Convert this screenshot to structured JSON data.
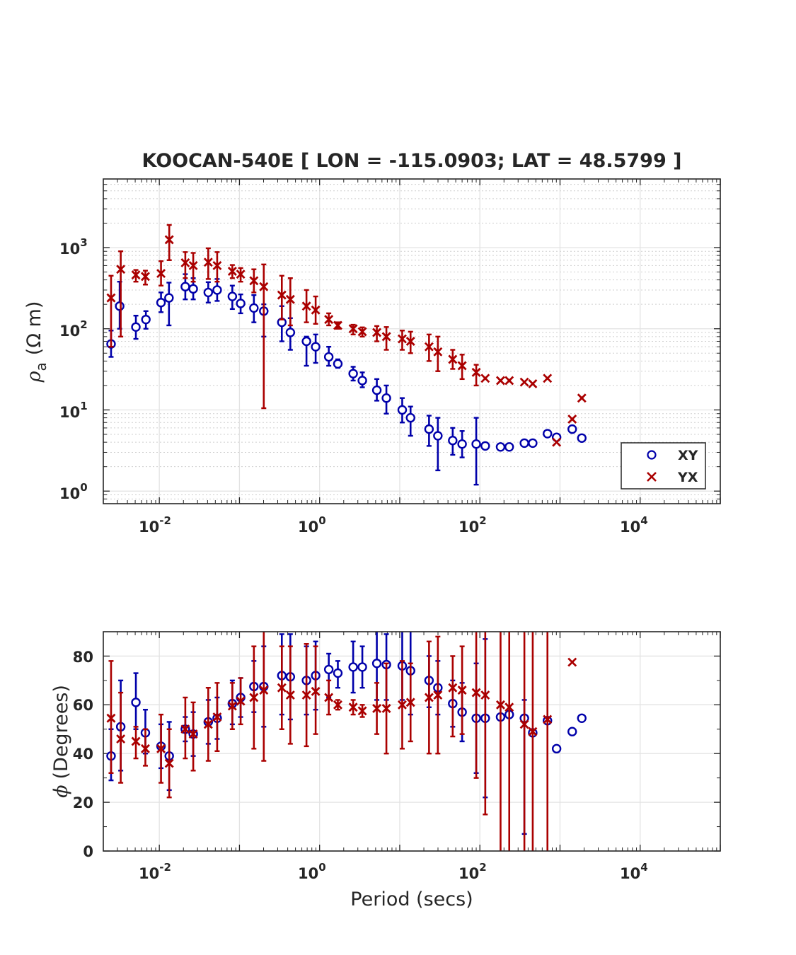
{
  "title": "KOOCAN-540E [ LON = -115.0903; LAT = 48.5799 ]",
  "colors": {
    "xy": "#0000aa",
    "yx": "#aa0000",
    "grid": "#e3e3e3",
    "axis": "#262626"
  },
  "chart_data": [
    {
      "type": "scatter",
      "name": "apparent-resistivity",
      "xscale": "log",
      "yscale": "log",
      "xlim": [
        0.002,
        100000
      ],
      "ylim": [
        0.7,
        7000
      ],
      "xticks": [
        {
          "base": "10",
          "exp": "-2"
        },
        {
          "base": "10",
          "exp": "0"
        },
        {
          "base": "10",
          "exp": "2"
        },
        {
          "base": "10",
          "exp": "4"
        }
      ],
      "yticks": [
        {
          "base": "10",
          "exp": "0"
        },
        {
          "base": "10",
          "exp": "1"
        },
        {
          "base": "10",
          "exp": "2"
        },
        {
          "base": "10",
          "exp": "3"
        }
      ],
      "ylabel": "ρ",
      "ylabel_sub": "a",
      "ylabel_unit": "(Ω m)",
      "legend": {
        "position": "bottom-right",
        "entries": [
          "XY",
          "YX"
        ]
      },
      "series": [
        {
          "name": "XY",
          "marker": "circle",
          "x": [
            0.0025,
            0.0032,
            0.0051,
            0.0068,
            0.0105,
            0.0132,
            0.0211,
            0.0265,
            0.0408,
            0.0527,
            0.0815,
            0.1035,
            0.1514,
            0.2011,
            0.3378,
            0.4315,
            0.6857,
            0.8925,
            1.3014,
            1.6894,
            2.6237,
            3.4136,
            5.1778,
            6.8142,
            10.7406,
            13.6493,
            23.2119,
            29.9108,
            45.8103,
            60.0425,
            90.0856,
            116.7286,
            181.1364,
            232.5651,
            359.2025,
            456.6123,
            697.0584,
            906.4201,
            1420.1535,
            1869.9036
          ],
          "y": [
            65,
            190,
            105,
            130,
            210,
            240,
            330,
            310,
            280,
            300,
            250,
            205,
            180,
            165,
            120,
            90,
            70,
            60,
            45,
            37,
            28,
            23,
            17.5,
            14,
            10,
            8,
            5.8,
            4.8,
            4.2,
            3.8,
            3.8,
            3.6,
            3.5,
            3.5,
            3.9,
            3.9,
            5.1,
            4.6,
            5.8,
            4.5
          ],
          "y_lo": [
            45,
            100,
            75,
            100,
            160,
            110,
            230,
            230,
            210,
            220,
            175,
            155,
            120,
            80,
            70,
            55,
            35,
            38,
            35,
            33,
            23,
            19,
            13,
            9,
            7,
            4.8,
            3.6,
            1.8,
            2.8,
            2.6,
            1.2,
            null,
            null,
            null,
            null,
            null,
            null,
            null,
            null,
            null
          ],
          "y_hi": [
            95,
            380,
            145,
            165,
            280,
            370,
            470,
            420,
            375,
            410,
            340,
            265,
            260,
            200,
            190,
            135,
            80,
            85,
            60,
            42,
            34,
            29,
            24,
            20,
            14,
            11,
            8.5,
            8,
            6,
            5.5,
            8,
            null,
            null,
            null,
            null,
            null,
            null,
            null,
            null,
            null
          ]
        },
        {
          "name": "YX",
          "marker": "cross",
          "x": [
            0.0025,
            0.0033,
            0.0051,
            0.0067,
            0.0105,
            0.0133,
            0.0211,
            0.0265,
            0.0408,
            0.0527,
            0.0815,
            0.1035,
            0.1514,
            0.2011,
            0.3378,
            0.4315,
            0.6857,
            0.8925,
            1.3014,
            1.6894,
            2.6237,
            3.4136,
            5.1778,
            6.8142,
            10.7406,
            13.6493,
            23.2119,
            29.9108,
            45.8103,
            60.0425,
            90.0856,
            116.7286,
            181.1364,
            232.5651,
            359.2025,
            456.6123,
            697.0584,
            906.4201,
            1420.1535,
            1869.9036
          ],
          "y": [
            240,
            540,
            460,
            440,
            480,
            1250,
            650,
            600,
            660,
            600,
            510,
            470,
            390,
            330,
            260,
            230,
            190,
            170,
            130,
            110,
            100,
            92,
            90,
            80,
            75,
            70,
            60,
            52,
            42,
            35,
            29,
            24.5,
            23,
            23,
            22,
            21,
            24.5,
            4,
            7.7,
            14
          ],
          "y_lo": [
            60,
            80,
            380,
            350,
            340,
            700,
            420,
            380,
            410,
            380,
            420,
            380,
            280,
            10.5,
            130,
            110,
            120,
            115,
            110,
            100,
            85,
            80,
            70,
            55,
            55,
            50,
            40,
            30,
            32,
            24,
            20,
            null,
            null,
            null,
            null,
            null,
            null,
            null,
            null,
            null
          ],
          "y_hi": [
            450,
            900,
            530,
            520,
            680,
            1900,
            880,
            860,
            980,
            880,
            610,
            560,
            540,
            620,
            450,
            420,
            300,
            250,
            155,
            120,
            112,
            104,
            108,
            105,
            95,
            92,
            85,
            80,
            55,
            48,
            36,
            null,
            null,
            null,
            null,
            null,
            null,
            null,
            null,
            null
          ]
        }
      ]
    },
    {
      "type": "scatter",
      "name": "phase",
      "xscale": "log",
      "yscale": "linear",
      "xlim": [
        0.002,
        100000
      ],
      "ylim": [
        0,
        90
      ],
      "xticks": [
        {
          "base": "10",
          "exp": "-2"
        },
        {
          "base": "10",
          "exp": "0"
        },
        {
          "base": "10",
          "exp": "2"
        },
        {
          "base": "10",
          "exp": "4"
        }
      ],
      "yticks": [
        "0",
        "20",
        "40",
        "60",
        "80"
      ],
      "xlabel": "Period (secs)",
      "ylabel": "ϕ",
      "ylabel_unit": "(Degrees)",
      "series": [
        {
          "name": "XY",
          "marker": "circle",
          "x": [
            0.0025,
            0.0033,
            0.0051,
            0.0067,
            0.0105,
            0.0133,
            0.0211,
            0.0265,
            0.0408,
            0.0527,
            0.0815,
            0.1035,
            0.1514,
            0.2011,
            0.3378,
            0.4315,
            0.6857,
            0.8925,
            1.3014,
            1.6894,
            2.6237,
            3.4136,
            5.1778,
            6.8142,
            10.7406,
            13.6493,
            23.2119,
            29.9108,
            45.8103,
            60.0425,
            90.0856,
            116.7286,
            181.1364,
            232.5651,
            359.2025,
            456.6123,
            697.0584,
            906.4201,
            1420.1535,
            1869.9036
          ],
          "y": [
            39,
            51,
            61,
            48.5,
            43,
            39,
            50,
            48,
            53,
            54.5,
            60.5,
            63,
            67.5,
            67.5,
            72,
            71.5,
            70,
            72,
            74.5,
            73,
            75.5,
            75.5,
            77,
            76.5,
            76,
            74,
            70,
            67,
            60.5,
            57,
            54.5,
            54.5,
            55,
            56,
            54.5,
            48.5,
            53.5,
            42,
            49,
            54.5
          ],
          "y_lo": [
            29,
            33,
            50,
            40,
            34,
            25,
            45,
            39,
            44,
            46,
            52,
            55,
            57,
            51,
            56,
            54,
            56,
            58,
            63,
            67,
            65,
            67,
            62,
            62,
            62,
            56,
            59,
            56,
            51,
            45,
            32,
            22,
            55,
            56,
            7,
            48,
            53,
            42,
            49,
            54.5
          ],
          "y_hi": [
            50,
            70,
            73,
            58,
            52,
            53,
            55,
            57,
            62,
            63,
            70,
            71,
            78,
            84,
            89,
            89,
            84,
            86,
            81,
            78,
            86,
            84,
            92,
            89,
            90,
            92,
            80,
            78,
            70,
            69,
            77,
            87,
            55,
            56,
            62,
            49,
            54,
            42,
            49,
            54.5
          ]
        },
        {
          "name": "YX",
          "marker": "cross",
          "x": [
            0.0025,
            0.0033,
            0.0051,
            0.0067,
            0.0105,
            0.0133,
            0.0211,
            0.0265,
            0.0408,
            0.0527,
            0.0815,
            0.1035,
            0.1514,
            0.2011,
            0.3378,
            0.4315,
            0.6857,
            0.8925,
            1.3014,
            1.6894,
            2.6237,
            3.4136,
            5.1778,
            6.8142,
            10.7406,
            13.6493,
            23.2119,
            29.9108,
            45.8103,
            60.0425,
            90.0856,
            116.7286,
            181.1364,
            232.5651,
            359.2025,
            456.6123,
            697.0584,
            906.4201,
            1420.1535,
            1869.9036
          ],
          "y": [
            54.5,
            46,
            45,
            42,
            42,
            36,
            50,
            48,
            52,
            55,
            59.5,
            61.5,
            63,
            66,
            67,
            64,
            64,
            65.5,
            63,
            60,
            59,
            57.5,
            58.5,
            58.5,
            60,
            61,
            63,
            64,
            67,
            66,
            65,
            64,
            60,
            59,
            52,
            49,
            54,
            null,
            77.5,
            null
          ],
          "y_lo": [
            32,
            28,
            38,
            35,
            28,
            22,
            38,
            33,
            37,
            41,
            50,
            52,
            42,
            37,
            50,
            44,
            43,
            48,
            56,
            58,
            56,
            55,
            48,
            40,
            42,
            45,
            40,
            40,
            47,
            48,
            30,
            15,
            0,
            0,
            0,
            0,
            0,
            null,
            null,
            null
          ],
          "y_hi": [
            78,
            65,
            51,
            50,
            56,
            50,
            63,
            61,
            67,
            69,
            69,
            71,
            84,
            95,
            84,
            84,
            85,
            84,
            70,
            62,
            62,
            60,
            69,
            77,
            78,
            77,
            86,
            88,
            80,
            84,
            100,
            110,
            120,
            120,
            120,
            120,
            120,
            null,
            null,
            null
          ]
        }
      ]
    }
  ]
}
